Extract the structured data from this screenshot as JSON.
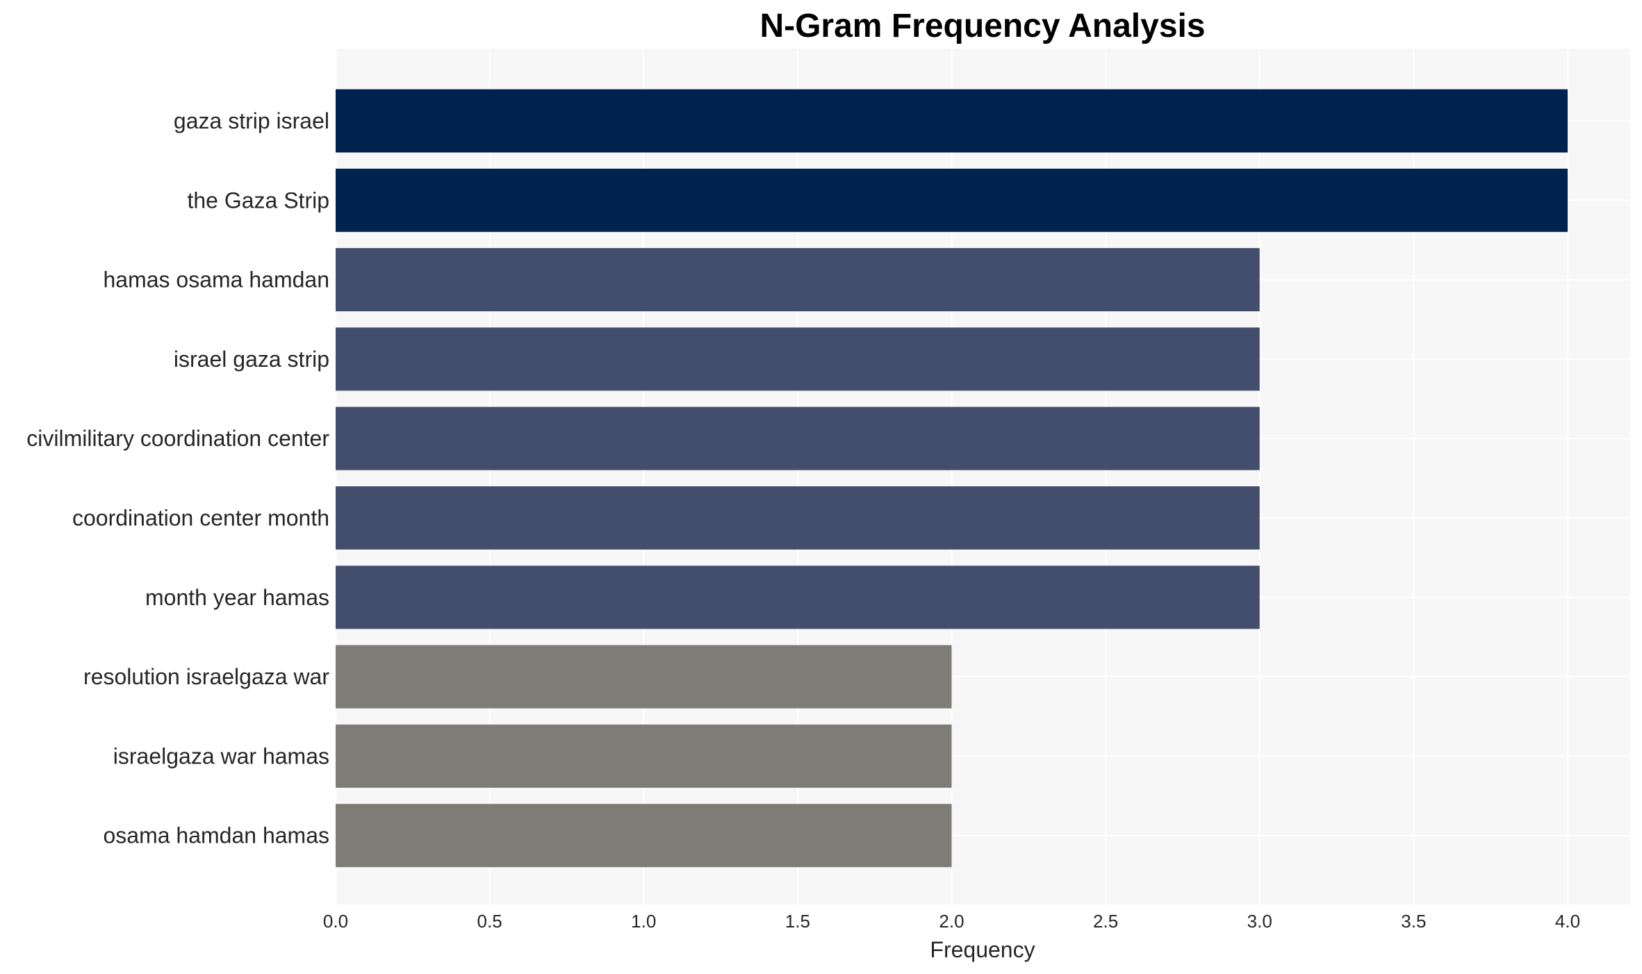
{
  "chart_data": {
    "type": "bar",
    "orientation": "horizontal",
    "title": "N-Gram Frequency Analysis",
    "xlabel": "Frequency",
    "ylabel": "",
    "xlim": [
      0,
      4.2
    ],
    "x_ticks": [
      "0.0",
      "0.5",
      "1.0",
      "1.5",
      "2.0",
      "2.5",
      "3.0",
      "3.5",
      "4.0"
    ],
    "grid": true,
    "categories": [
      "gaza strip israel",
      "the Gaza Strip",
      "hamas osama hamdan",
      "israel gaza strip",
      "civilmilitary coordination center",
      "coordination center month",
      "month year hamas",
      "resolution israelgaza war",
      "israelgaza war hamas",
      "osama hamdan hamas"
    ],
    "values": [
      4,
      4,
      3,
      3,
      3,
      3,
      3,
      2,
      2,
      2
    ],
    "colors": [
      "#00224e",
      "#00224e",
      "#434e6c",
      "#434e6c",
      "#434e6c",
      "#434e6c",
      "#434e6c",
      "#7d7c77",
      "#7d7c77",
      "#7d7c77"
    ],
    "plot_background": "#f7f7f7",
    "grid_color": "#ffffff"
  }
}
